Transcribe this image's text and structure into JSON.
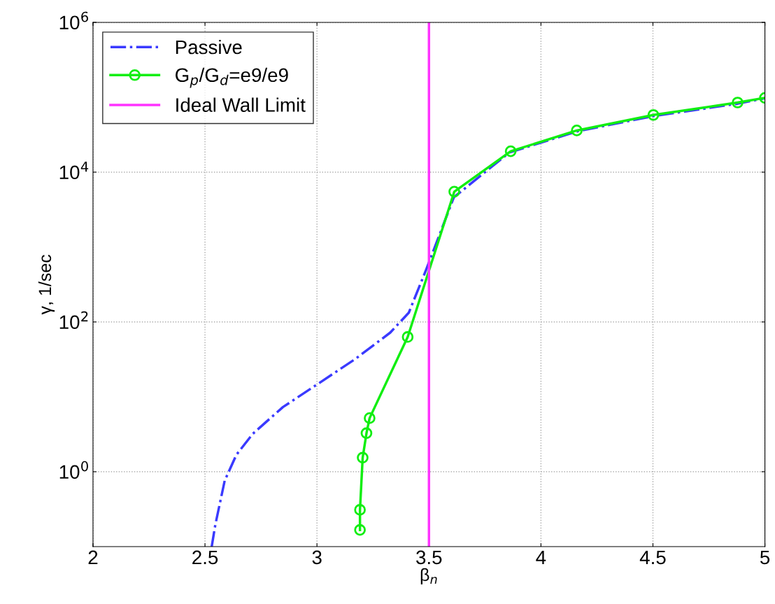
{
  "chart_data": {
    "type": "line",
    "xlabel": "β$_{n}$",
    "ylabel": "γ, 1/sec",
    "log": "y",
    "xlim": [
      2,
      5
    ],
    "xticks": [
      2,
      2.5,
      3,
      3.5,
      4,
      4.5,
      5
    ],
    "ylim": [
      0.1,
      1000000
    ],
    "yticks": [
      {
        "value": 1,
        "label": "10$^{0}$"
      },
      {
        "value": 100,
        "label": "10$^{2}$"
      },
      {
        "value": 10000,
        "label": "10$^{4}$"
      },
      {
        "value": 1000000,
        "label": "10$^{6}$"
      }
    ],
    "grid": true,
    "legend": "top left",
    "series": [
      {
        "name": "Passive",
        "color": "#3a3aff",
        "line_style": "dashdot",
        "marker": "none",
        "x": [
          2.53,
          2.546,
          2.588,
          2.64,
          2.713,
          2.848,
          3.006,
          3.171,
          3.327,
          3.41,
          3.487,
          3.611,
          3.859,
          4.164,
          4.502,
          4.878,
          5.0
        ],
        "values": [
          0.1,
          0.195,
          0.76,
          1.68,
          3.2,
          7.3,
          15,
          32,
          72,
          133,
          494,
          4610,
          18300,
          35200,
          56000,
          82000,
          97000
        ]
      },
      {
        "name": "G$_{p}$/G$_{d}$=e9/e9",
        "color": "#11ee11",
        "line_style": "solid",
        "marker": "circle",
        "x": [
          3.192,
          3.192,
          3.204,
          3.221,
          3.235,
          3.405,
          3.613,
          3.865,
          4.16,
          4.502,
          4.878,
          5.0
        ],
        "values": [
          0.167,
          0.31,
          1.54,
          3.27,
          5.2,
          63,
          5480,
          19000,
          36000,
          58000,
          85000,
          98000
        ]
      },
      {
        "name": "Ideal Wall Limit",
        "color": "#ff33ff",
        "line_style": "solid",
        "marker": "none",
        "x": [
          3.5,
          3.5
        ],
        "values": [
          0.1,
          1000000
        ]
      }
    ]
  }
}
